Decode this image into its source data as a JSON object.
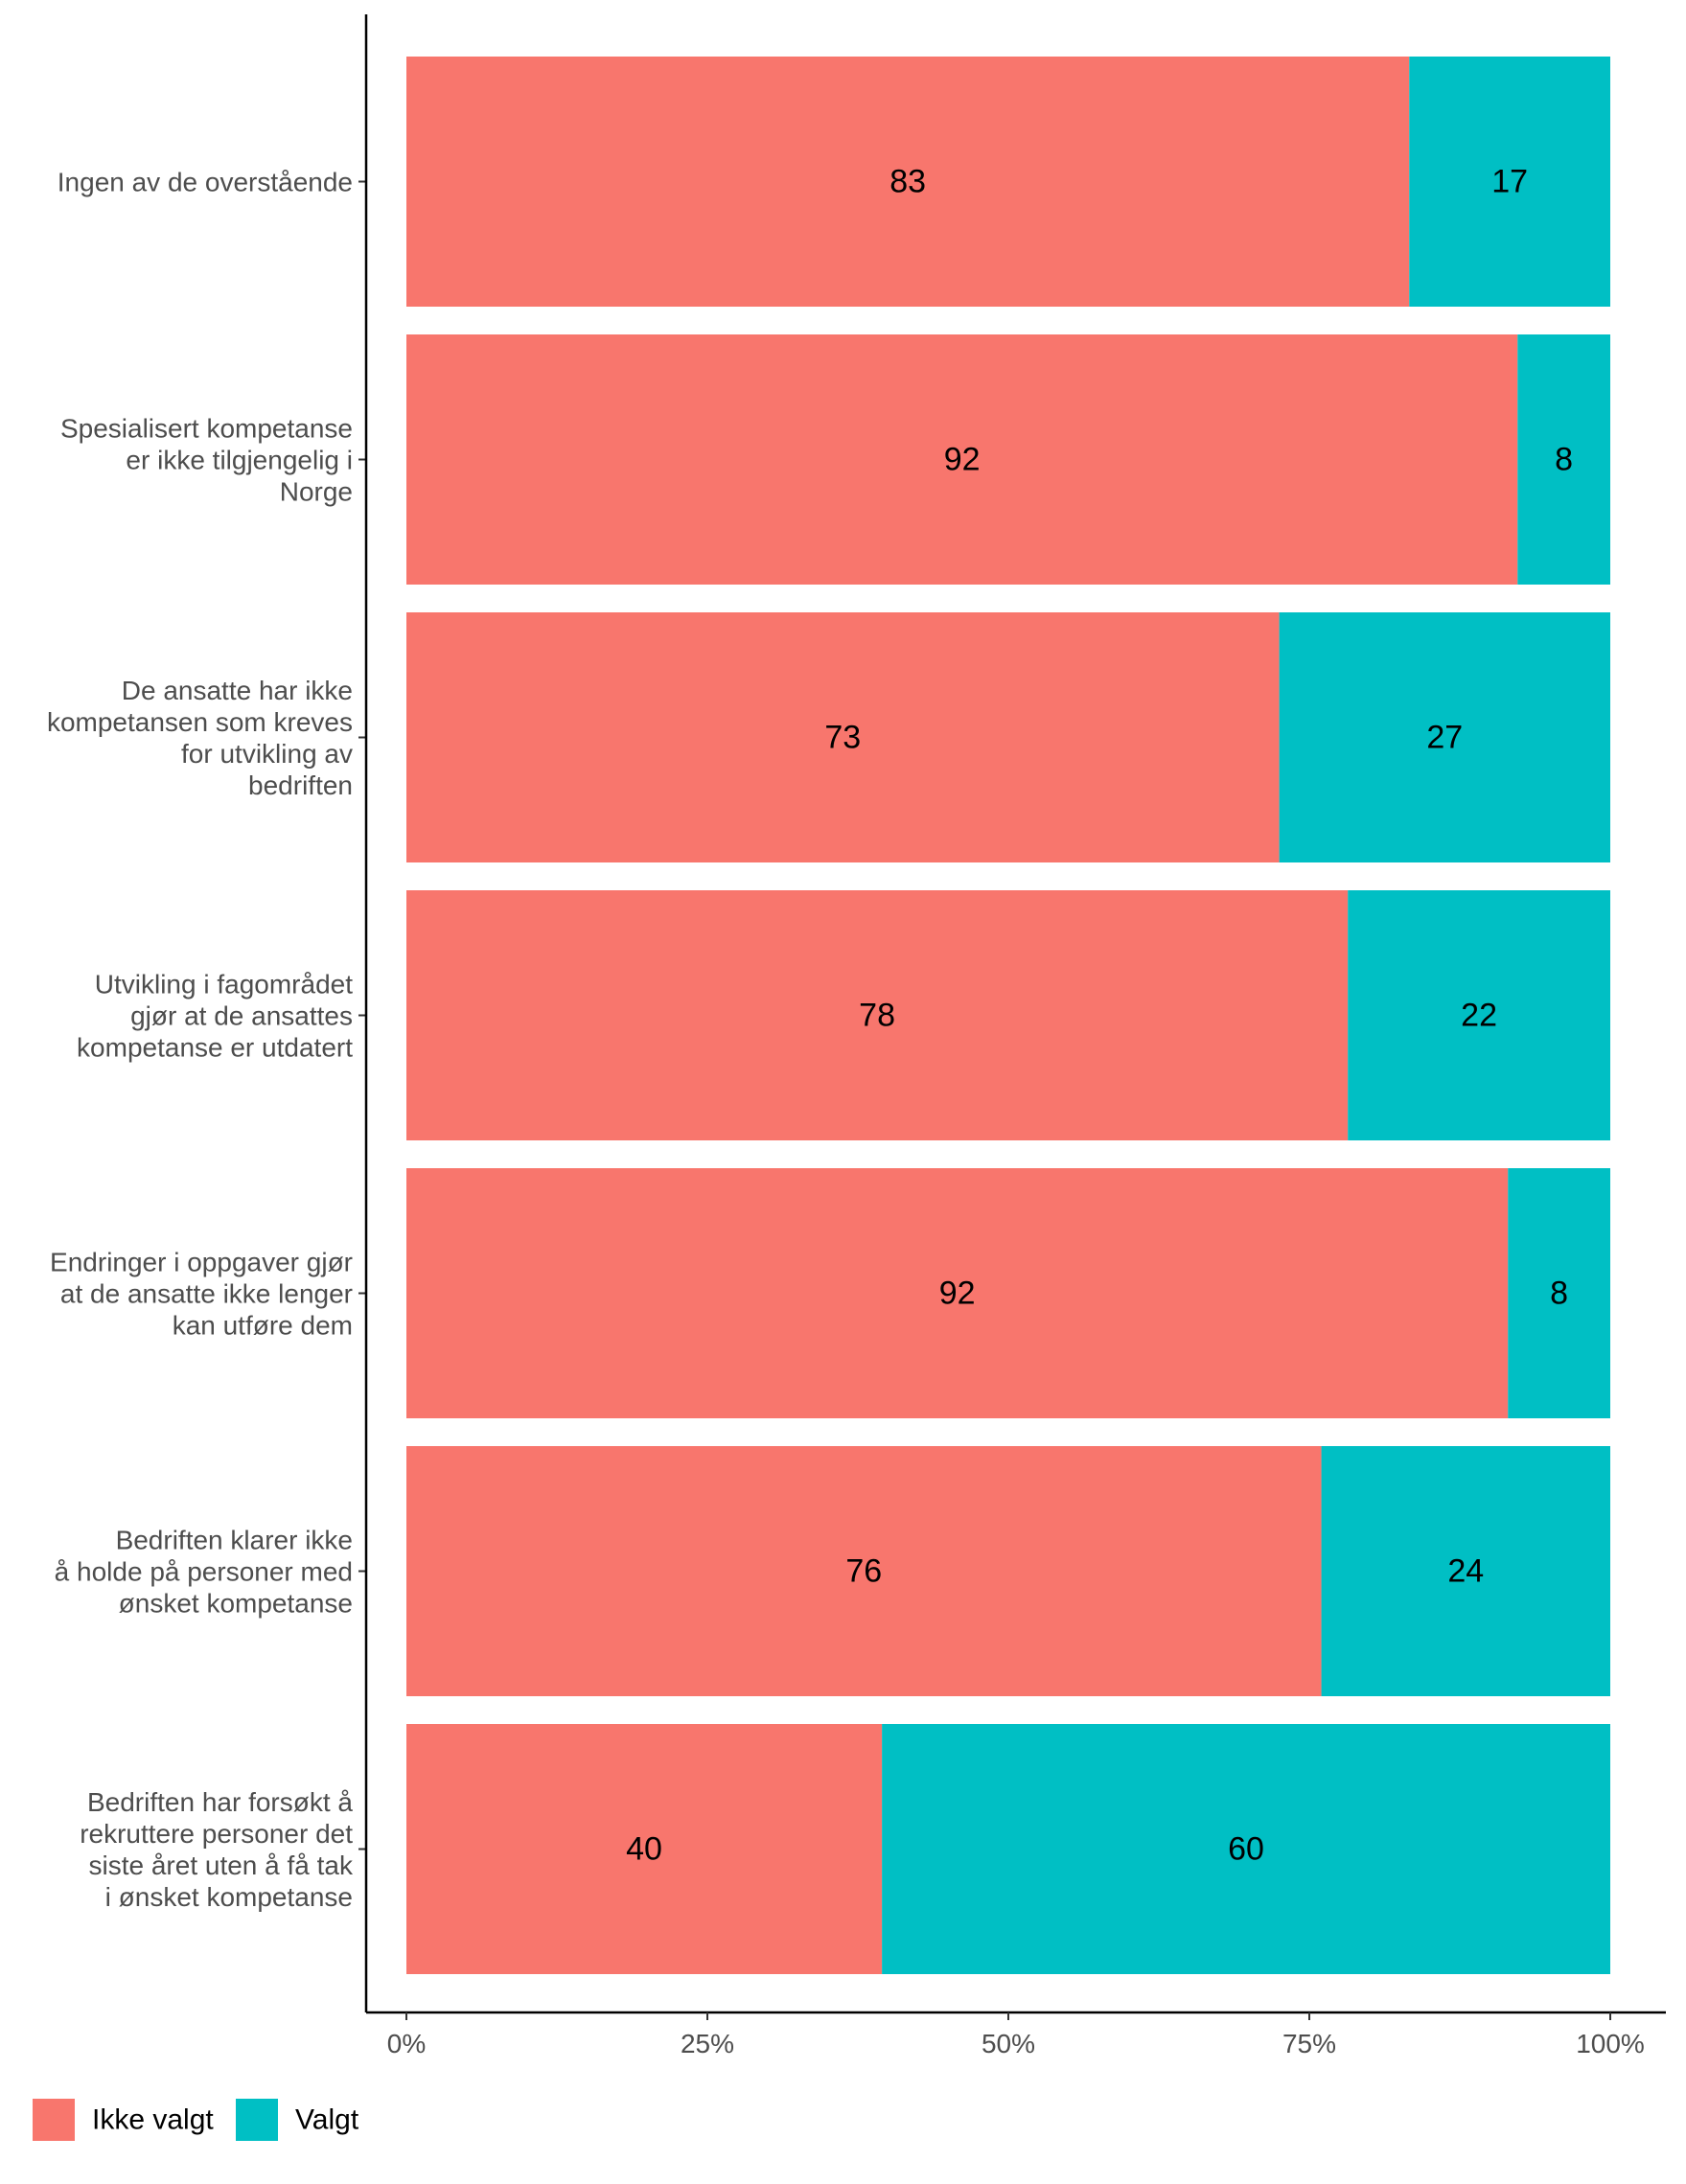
{
  "chart_data": {
    "type": "bar",
    "orientation": "horizontal",
    "stacked": true,
    "categories": [
      "Ingen av de overstående",
      "Spesialisert kompetanse er ikke tilgjengelig i Norge",
      "De ansatte har ikke kompetansen som kreves for utvikling av bedriften",
      "Utvikling i fagområdet gjør at de ansattes kompetanse er utdatert",
      "Endringer i oppgaver gjør at de ansatte ikke lenger kan utføre dem",
      "Bedriften klarer ikke å holde på personer med ønsket kompetanse",
      "Bedriften har forsøkt å rekruttere personer det siste året uten å få tak i ønsket kompetanse"
    ],
    "category_lines": [
      [
        "Ingen av de overstående"
      ],
      [
        "Spesialisert kompetanse",
        "er ikke tilgjengelig i",
        "Norge"
      ],
      [
        "De ansatte har ikke",
        "kompetansen som kreves",
        "for utvikling av",
        "bedriften"
      ],
      [
        "Utvikling i fagområdet",
        "gjør at de ansattes",
        "kompetanse er utdatert"
      ],
      [
        "Endringer i oppgaver gjør",
        "at de ansatte ikke lenger",
        "kan utføre dem"
      ],
      [
        "Bedriften klarer ikke",
        "å holde på personer med",
        "ønsket kompetanse"
      ],
      [
        "Bedriften har forsøkt å",
        "rekruttere personer det",
        "siste året uten å få tak",
        "i ønsket kompetanse"
      ]
    ],
    "series": [
      {
        "name": "Ikke valgt",
        "color": "#F8766D",
        "values": [
          83.3,
          92.3,
          72.5,
          78.2,
          91.5,
          76.0,
          39.5
        ],
        "labels": [
          "83",
          "92",
          "73",
          "78",
          "92",
          "76",
          "40"
        ]
      },
      {
        "name": "Valgt",
        "color": "#00BFC4",
        "values": [
          16.7,
          7.7,
          27.5,
          21.8,
          8.5,
          24.0,
          60.5
        ],
        "labels": [
          "17",
          "8",
          "27",
          "22",
          "8",
          "24",
          "60"
        ]
      }
    ],
    "x_ticks": [
      0,
      25,
      50,
      75,
      100
    ],
    "x_tick_labels": [
      "0%",
      "25%",
      "50%",
      "75%",
      "100%"
    ],
    "xlim": [
      0,
      100
    ],
    "legend_position": "bottom-left"
  }
}
